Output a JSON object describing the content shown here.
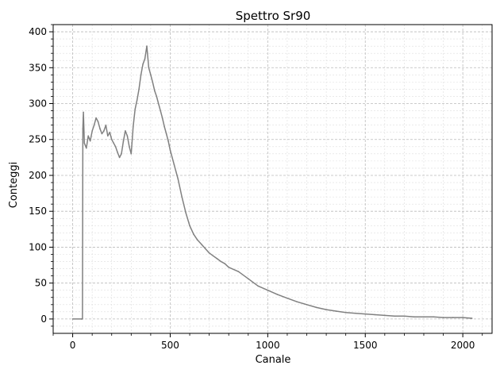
{
  "chart_data": {
    "type": "line",
    "title": "Spettro Sr90",
    "xlabel": "Canale",
    "ylabel": "Conteggi",
    "xlim": [
      -100,
      2150
    ],
    "ylim": [
      -20,
      410
    ],
    "x_ticks": [
      0,
      500,
      1000,
      1500,
      2000
    ],
    "y_ticks": [
      0,
      50,
      100,
      150,
      200,
      250,
      300,
      350,
      400
    ],
    "grid": true,
    "minor_grid": true,
    "series": [
      {
        "color": "#808080",
        "x": [
          0,
          45,
          46,
          50,
          52,
          55,
          60,
          70,
          80,
          90,
          100,
          110,
          120,
          130,
          140,
          150,
          160,
          170,
          180,
          190,
          200,
          210,
          220,
          230,
          240,
          250,
          260,
          270,
          280,
          290,
          300,
          310,
          320,
          330,
          340,
          350,
          360,
          370,
          380,
          390,
          400,
          410,
          420,
          430,
          440,
          450,
          460,
          470,
          480,
          490,
          500,
          520,
          540,
          560,
          580,
          600,
          620,
          640,
          660,
          680,
          700,
          720,
          740,
          760,
          780,
          800,
          850,
          900,
          950,
          1000,
          1050,
          1100,
          1150,
          1200,
          1250,
          1300,
          1350,
          1400,
          1450,
          1500,
          1550,
          1600,
          1650,
          1700,
          1750,
          1800,
          1850,
          1900,
          1950,
          2000,
          2047
        ],
        "y": [
          0,
          0,
          0,
          0,
          265,
          288,
          245,
          238,
          255,
          248,
          262,
          270,
          280,
          275,
          265,
          258,
          262,
          270,
          255,
          260,
          250,
          245,
          240,
          232,
          225,
          230,
          248,
          262,
          255,
          240,
          230,
          268,
          292,
          305,
          320,
          340,
          355,
          362,
          380,
          350,
          340,
          330,
          318,
          310,
          300,
          290,
          280,
          268,
          258,
          248,
          235,
          215,
          195,
          170,
          148,
          130,
          118,
          110,
          104,
          98,
          92,
          88,
          84,
          80,
          77,
          72,
          66,
          56,
          46,
          40,
          34,
          29,
          24,
          20,
          16,
          13,
          11,
          9,
          8,
          7,
          6,
          5,
          4,
          4,
          3,
          3,
          3,
          2,
          2,
          2,
          1
        ]
      }
    ]
  }
}
